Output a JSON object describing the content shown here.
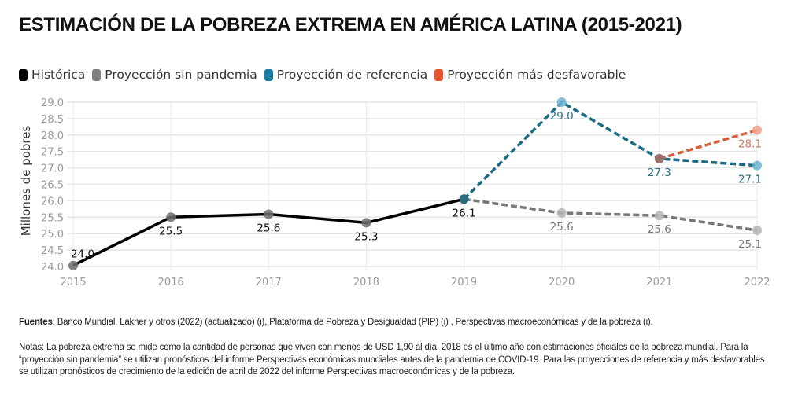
{
  "title": "ESTIMACIÓN DE LA POBREZA EXTREMA EN AMÉRICA LATINA (2015-2021)",
  "legend": [
    {
      "label": "Histórica",
      "color": "#000000"
    },
    {
      "label": "Proyección sin pandemia",
      "color": "#808080"
    },
    {
      "label": "Proyección de referencia",
      "color": "#1a7fa3"
    },
    {
      "label": "Proyección más desfavorable",
      "color": "#e8542e"
    }
  ],
  "chart_data": {
    "type": "line",
    "title": "ESTIMACIÓN DE LA POBREZA EXTREMA EN AMÉRICA LATINA (2015-2021)",
    "xlabel": "",
    "ylabel": "Millones de pobres",
    "x": [
      "2015",
      "2016",
      "2017",
      "2018",
      "2019",
      "2020",
      "2021",
      "2022"
    ],
    "ylim": [
      24.0,
      29.0
    ],
    "yticks": [
      "24.0",
      "24.5",
      "25.0",
      "25.5",
      "26.0",
      "26.5",
      "27.0",
      "27.5",
      "28.0",
      "28.5",
      "29.0"
    ],
    "grid": true,
    "legend_position": "top-left",
    "series": [
      {
        "name": "Histórica",
        "style": "solid",
        "line_color": "#000000",
        "point_color": "#6b6b6b",
        "label_color": "#111111",
        "points": [
          {
            "x": "2015",
            "y": 24.03,
            "label": "24.0",
            "label_pos": "above"
          },
          {
            "x": "2016",
            "y": 25.5,
            "label": "25.5",
            "label_pos": "below"
          },
          {
            "x": "2017",
            "y": 25.59,
            "label": "25.6",
            "label_pos": "below"
          },
          {
            "x": "2018",
            "y": 25.33,
            "label": "25.3",
            "label_pos": "below"
          },
          {
            "x": "2019",
            "y": 26.05,
            "label": "26.1",
            "label_pos": "below"
          }
        ]
      },
      {
        "name": "Proyección sin pandemia",
        "style": "dashed",
        "line_color": "#777777",
        "point_color": "#b5b5b5",
        "label_color": "#7a7a7a",
        "points": [
          {
            "x": "2019",
            "y": 26.05,
            "label": "",
            "label_pos": "below"
          },
          {
            "x": "2020",
            "y": 25.63,
            "label": "25.6",
            "label_pos": "below"
          },
          {
            "x": "2021",
            "y": 25.55,
            "label": "25.6",
            "label_pos": "below"
          },
          {
            "x": "2022",
            "y": 25.1,
            "label": "25.1",
            "label_pos": "below"
          }
        ]
      },
      {
        "name": "Proyección de referencia",
        "style": "dashed",
        "line_color": "#1b6b86",
        "point_color": "#6bb3d0",
        "label_color": "#2a6f87",
        "points": [
          {
            "x": "2019",
            "y": 26.05,
            "label": "",
            "label_pos": "below"
          },
          {
            "x": "2020",
            "y": 29.0,
            "label": "29.0",
            "label_pos": "below"
          },
          {
            "x": "2021",
            "y": 27.28,
            "label": "27.3",
            "label_pos": "below"
          },
          {
            "x": "2022",
            "y": 27.07,
            "label": "27.1",
            "label_pos": "below"
          }
        ]
      },
      {
        "name": "Proyección más desfavorable",
        "style": "dashed",
        "line_color": "#d2603d",
        "point_color": "#f0a08a",
        "label_color": "#c8795e",
        "points": [
          {
            "x": "2021",
            "y": 27.28,
            "label": "",
            "label_pos": "below"
          },
          {
            "x": "2022",
            "y": 28.15,
            "label": "28.1",
            "label_pos": "below"
          }
        ]
      }
    ]
  },
  "footer": {
    "sources_label": "Fuentes",
    "sources_text": ": Banco Mundial, Lakner y otros (2022) (actualizado) (i), Plataforma de Pobreza y Desigualdad (PIP) (i) , Perspectivas macroeconómicas y de la pobreza (i).",
    "notes_text": "Notas: La pobreza extrema se mide como la cantidad de personas que viven con menos de USD 1,90 al día. 2018 es el último año con estimaciones oficiales de la pobreza mundial. Para la “proyección sin pandemia” se utilizan pronósticos del informe Perspectivas económicas mundiales antes de la pandemia de COVID-19. Para las proyecciones de referencia y más desfavorables se utilizan pronósticos de crecimiento de la edición de abril de 2022 del informe Perspectivas macroeconómicas y de la pobreza."
  }
}
